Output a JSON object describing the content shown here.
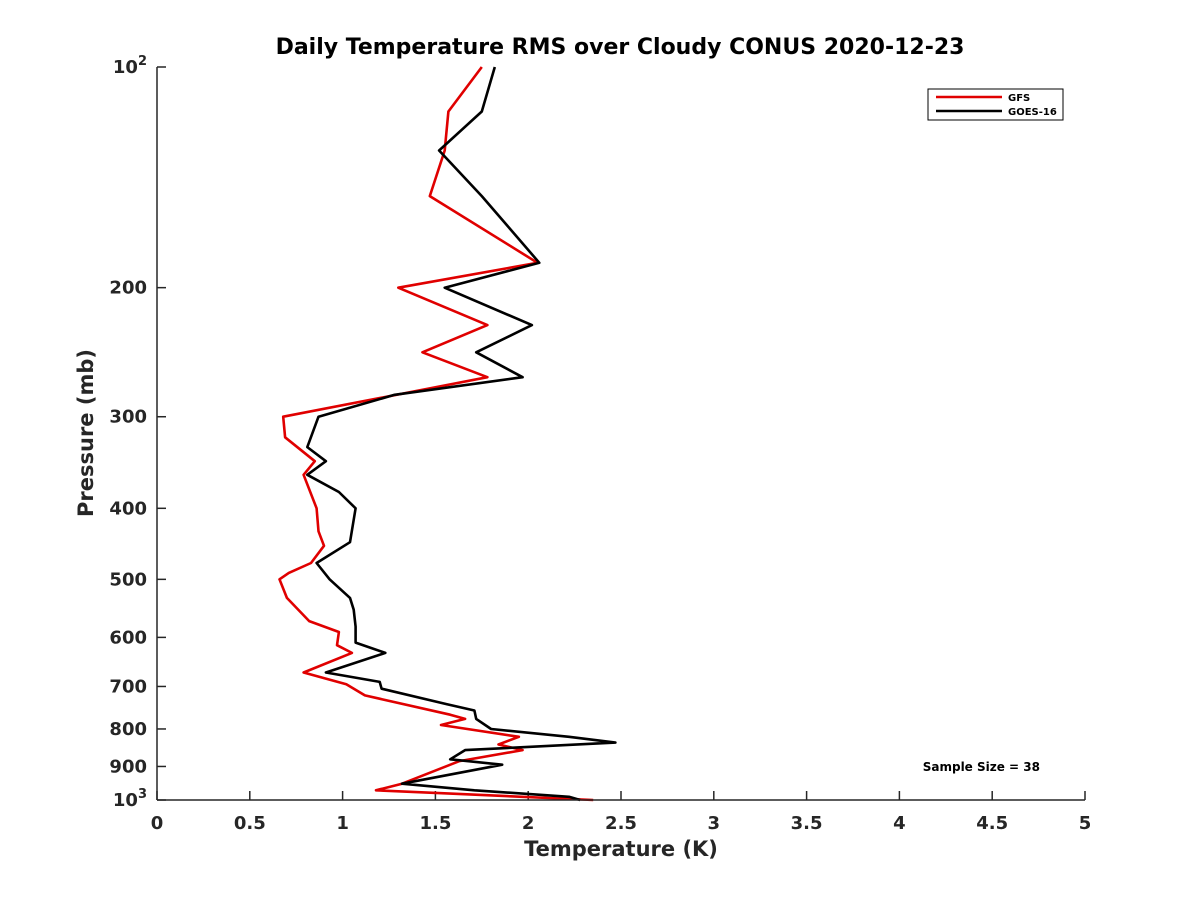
{
  "chart_data": {
    "type": "line",
    "title": "Daily Temperature RMS over Cloudy CONUS 2020-12-23",
    "xlabel": "Temperature (K)",
    "ylabel": "Pressure (mb)",
    "xlim": [
      0,
      5
    ],
    "ylim": [
      100,
      1000
    ],
    "y_scale": "log",
    "y_reversed": true,
    "grid": false,
    "legend_position": "top-right",
    "x_ticks": [
      "0",
      "0.5",
      "1",
      "1.5",
      "2",
      "2.5",
      "3",
      "3.5",
      "4",
      "4.5",
      "5"
    ],
    "y_ticks": [
      {
        "value": 100,
        "base": "10",
        "exp": "2"
      },
      {
        "value": 200,
        "label": "200"
      },
      {
        "value": 300,
        "label": "300"
      },
      {
        "value": 400,
        "label": "400"
      },
      {
        "value": 500,
        "label": "500"
      },
      {
        "value": 600,
        "label": "600"
      },
      {
        "value": 700,
        "label": "700"
      },
      {
        "value": 800,
        "label": "800"
      },
      {
        "value": 900,
        "label": "900"
      },
      {
        "value": 1000,
        "base": "10",
        "exp": "3"
      }
    ],
    "series": [
      {
        "name": "GFS",
        "color": "#e00000",
        "points": [
          [
            1.75,
            100
          ],
          [
            1.57,
            115
          ],
          [
            1.55,
            130
          ],
          [
            1.47,
            150
          ],
          [
            2.05,
            185
          ],
          [
            1.3,
            200
          ],
          [
            1.78,
            225
          ],
          [
            1.43,
            245
          ],
          [
            1.78,
            265
          ],
          [
            0.68,
            300
          ],
          [
            0.69,
            320
          ],
          [
            0.85,
            345
          ],
          [
            0.79,
            360
          ],
          [
            0.86,
            400
          ],
          [
            0.87,
            430
          ],
          [
            0.9,
            450
          ],
          [
            0.83,
            475
          ],
          [
            0.71,
            490
          ],
          [
            0.66,
            500
          ],
          [
            0.7,
            530
          ],
          [
            0.82,
            570
          ],
          [
            0.98,
            590
          ],
          [
            0.97,
            615
          ],
          [
            1.05,
            630
          ],
          [
            0.79,
            670
          ],
          [
            1.02,
            695
          ],
          [
            1.12,
            720
          ],
          [
            1.58,
            765
          ],
          [
            1.66,
            775
          ],
          [
            1.53,
            790
          ],
          [
            1.95,
            820
          ],
          [
            1.84,
            840
          ],
          [
            1.97,
            855
          ],
          [
            1.63,
            885
          ],
          [
            1.32,
            950
          ],
          [
            1.18,
            970
          ],
          [
            1.58,
            980
          ],
          [
            2.35,
            1000
          ]
        ]
      },
      {
        "name": "GOES-16",
        "color": "#000000",
        "points": [
          [
            1.82,
            100
          ],
          [
            1.75,
            115
          ],
          [
            1.52,
            130
          ],
          [
            1.75,
            150
          ],
          [
            2.06,
            185
          ],
          [
            1.55,
            200
          ],
          [
            2.02,
            225
          ],
          [
            1.72,
            245
          ],
          [
            1.97,
            265
          ],
          [
            1.28,
            280
          ],
          [
            0.87,
            300
          ],
          [
            0.81,
            330
          ],
          [
            0.91,
            345
          ],
          [
            0.81,
            360
          ],
          [
            0.98,
            380
          ],
          [
            1.07,
            400
          ],
          [
            1.04,
            445
          ],
          [
            0.86,
            475
          ],
          [
            0.93,
            500
          ],
          [
            1.04,
            530
          ],
          [
            1.06,
            550
          ],
          [
            1.07,
            580
          ],
          [
            1.07,
            610
          ],
          [
            1.23,
            630
          ],
          [
            0.91,
            670
          ],
          [
            1.2,
            690
          ],
          [
            1.21,
            705
          ],
          [
            1.56,
            740
          ],
          [
            1.71,
            755
          ],
          [
            1.72,
            775
          ],
          [
            1.8,
            800
          ],
          [
            2.22,
            820
          ],
          [
            2.47,
            835
          ],
          [
            1.66,
            855
          ],
          [
            1.58,
            880
          ],
          [
            1.86,
            895
          ],
          [
            1.32,
            950
          ],
          [
            1.71,
            970
          ],
          [
            2.22,
            990
          ],
          [
            2.28,
            1000
          ]
        ]
      }
    ],
    "annotation": "Sample Size = 38"
  }
}
